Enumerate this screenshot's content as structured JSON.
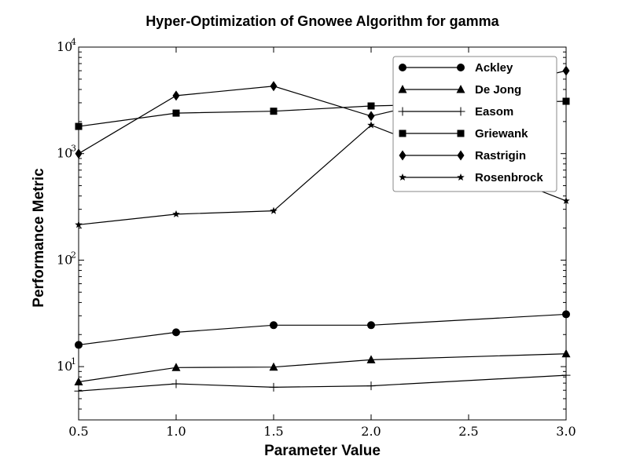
{
  "chart_data": {
    "type": "line",
    "title": "Hyper-Optimization of Gnowee Algorithm for gamma",
    "xlabel": "Parameter Value",
    "ylabel": "Performance Metric",
    "xlim": [
      0.5,
      3.0
    ],
    "ylim": [
      3.16,
      10000
    ],
    "yscale": "log",
    "xticks": [
      "0.5",
      "1.0",
      "1.5",
      "2.0",
      "2.5",
      "3.0"
    ],
    "yticks": [
      {
        "value": 10,
        "base": "10",
        "exp": "1"
      },
      {
        "value": 100,
        "base": "10",
        "exp": "2"
      },
      {
        "value": 1000,
        "base": "10",
        "exp": "3"
      },
      {
        "value": 10000,
        "base": "10",
        "exp": "4"
      }
    ],
    "legend_position": "top-right",
    "grid": false,
    "x": [
      0.5,
      1.0,
      1.5,
      2.0,
      3.0
    ],
    "series": [
      {
        "name": "Ackley",
        "marker": "circle",
        "values": [
          16,
          21,
          24.5,
          24.5,
          31
        ]
      },
      {
        "name": "De Jong",
        "marker": "triangle",
        "values": [
          7.2,
          9.8,
          9.9,
          11.6,
          13.2
        ]
      },
      {
        "name": "Easom",
        "marker": "plus",
        "values": [
          5.9,
          6.9,
          6.4,
          6.6,
          8.3
        ]
      },
      {
        "name": "Griewank",
        "marker": "square",
        "values": [
          1800,
          2400,
          2500,
          2800,
          3100
        ]
      },
      {
        "name": "Rastrigin",
        "marker": "diamond",
        "values": [
          1000,
          3500,
          4300,
          2250,
          6000
        ]
      },
      {
        "name": "Rosenbrock",
        "marker": "star",
        "values": [
          215,
          270,
          290,
          1850,
          360
        ]
      }
    ]
  }
}
